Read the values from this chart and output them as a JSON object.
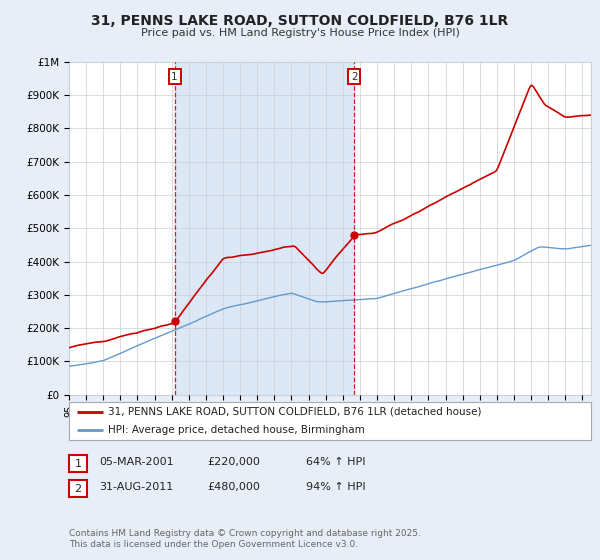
{
  "title": "31, PENNS LAKE ROAD, SUTTON COLDFIELD, B76 1LR",
  "subtitle": "Price paid vs. HM Land Registry's House Price Index (HPI)",
  "bg_color": "#e8eef8",
  "plot_bg_color": "#ffffff",
  "shade_color": "#dce8f5",
  "red_line_color": "#cc0000",
  "blue_line_color": "#6699cc",
  "grid_color": "#c8d0d8",
  "ylim": [
    0,
    1000000
  ],
  "yticks": [
    0,
    100000,
    200000,
    300000,
    400000,
    500000,
    600000,
    700000,
    800000,
    900000,
    1000000
  ],
  "ytick_labels": [
    "£0",
    "£100K",
    "£200K",
    "£300K",
    "£400K",
    "£500K",
    "£600K",
    "£700K",
    "£800K",
    "£900K",
    "£1M"
  ],
  "sale1_x": 2001.17,
  "sale1_y": 220000,
  "sale2_x": 2011.67,
  "sale2_y": 480000,
  "vline1_x": 2001.17,
  "vline2_x": 2011.67,
  "legend_red_label": "31, PENNS LAKE ROAD, SUTTON COLDFIELD, B76 1LR (detached house)",
  "legend_blue_label": "HPI: Average price, detached house, Birmingham",
  "table_rows": [
    {
      "num": "1",
      "date": "05-MAR-2001",
      "price": "£220,000",
      "pct": "64% ↑ HPI"
    },
    {
      "num": "2",
      "date": "31-AUG-2011",
      "price": "£480,000",
      "pct": "94% ↑ HPI"
    }
  ],
  "footer": "Contains HM Land Registry data © Crown copyright and database right 2025.\nThis data is licensed under the Open Government Licence v3.0.",
  "xmin": 1995,
  "xmax": 2025.5
}
